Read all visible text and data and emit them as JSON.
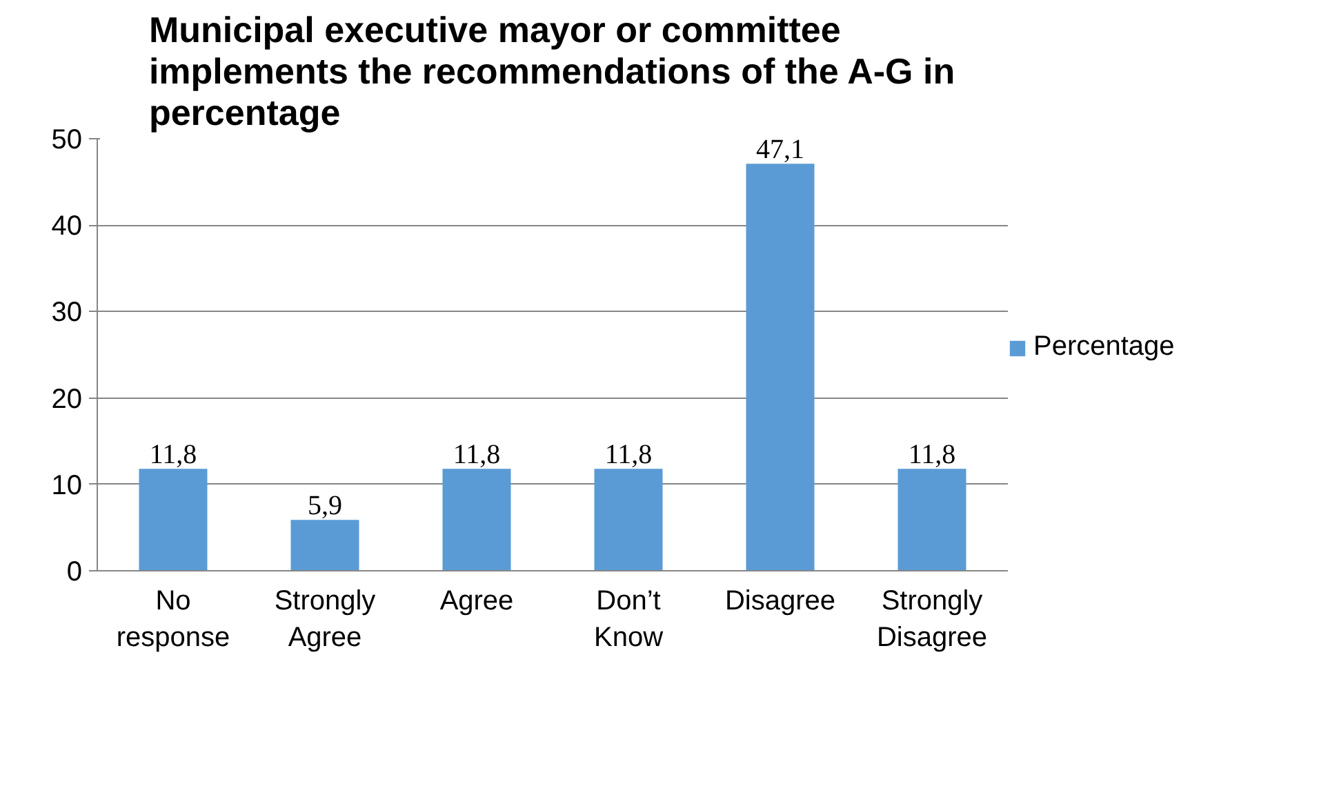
{
  "chart_data": {
    "type": "bar",
    "title": "Municipal executive mayor or committee implements the recommendations of the A-G in percentage",
    "categories": [
      "No response",
      "Strongly Agree",
      "Agree",
      "Don’t Know",
      "Disagree",
      "Strongly Disagree"
    ],
    "series": [
      {
        "name": "Percentage",
        "color": "#5b9bd5",
        "values": [
          11.8,
          5.9,
          11.8,
          11.8,
          47.1,
          11.8
        ],
        "value_labels": [
          "11,8",
          "5,9",
          "11,8",
          "11,8",
          "47,1",
          "11,8"
        ]
      }
    ],
    "ylim": [
      0,
      50
    ],
    "yticks": [
      0,
      10,
      20,
      30,
      40,
      50
    ],
    "grid": "y",
    "legend": "right"
  }
}
